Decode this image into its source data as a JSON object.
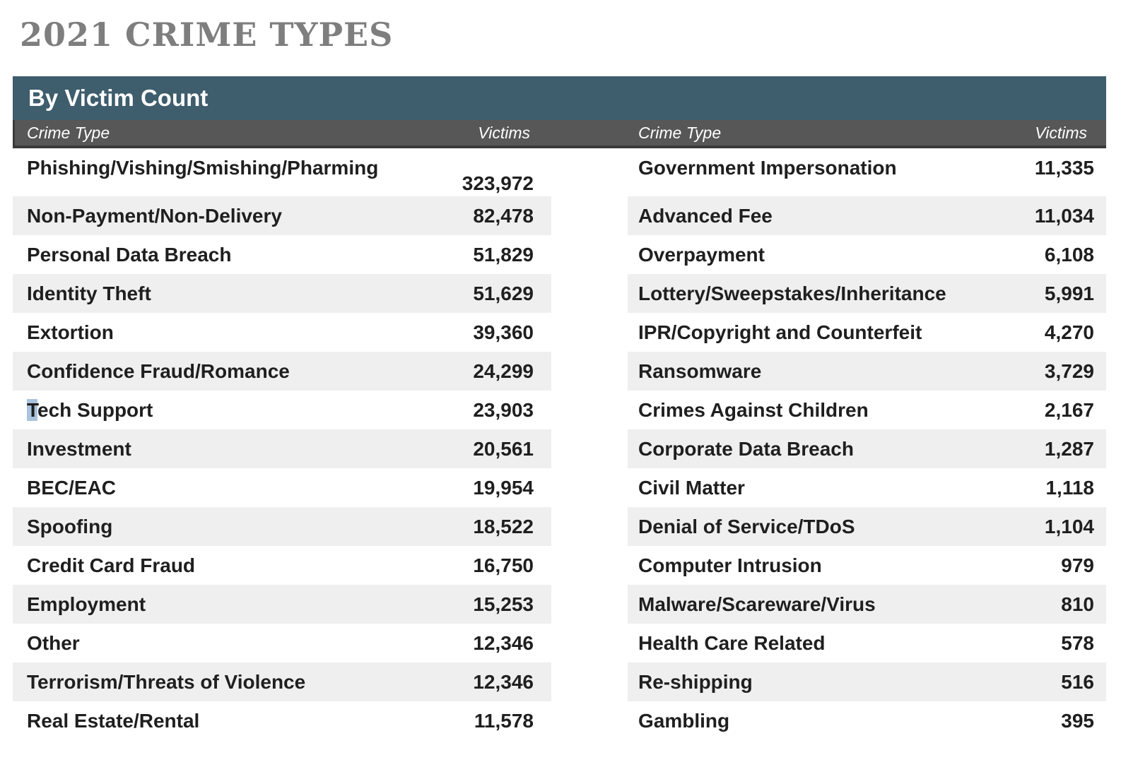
{
  "title": "2021 CRIME TYPES",
  "table": {
    "header": "By Victim Count",
    "column_headers": {
      "crime_type": "Crime Type",
      "victims": "Victims"
    },
    "left_rows": [
      {
        "label": "Phishing/Vishing/Smishing/Pharming",
        "value": "323,972"
      },
      {
        "label": "Non-Payment/Non-Delivery",
        "value": "82,478"
      },
      {
        "label": "Personal Data Breach",
        "value": "51,829"
      },
      {
        "label": "Identity Theft",
        "value": "51,629"
      },
      {
        "label": "Extortion",
        "value": "39,360"
      },
      {
        "label": "Confidence Fraud/Romance",
        "value": "24,299"
      },
      {
        "label_highlight": "T",
        "label_rest": "ech Support",
        "value": "23,903"
      },
      {
        "label": "Investment",
        "value": "20,561"
      },
      {
        "label": "BEC/EAC",
        "value": "19,954"
      },
      {
        "label": "Spoofing",
        "value": "18,522"
      },
      {
        "label": "Credit Card Fraud",
        "value": "16,750"
      },
      {
        "label": "Employment",
        "value": "15,253"
      },
      {
        "label": "Other",
        "value": "12,346"
      },
      {
        "label": "Terrorism/Threats of Violence",
        "value": "12,346"
      },
      {
        "label": "Real Estate/Rental",
        "value": "11,578"
      }
    ],
    "right_rows": [
      {
        "label": "Government Impersonation",
        "value": "11,335"
      },
      {
        "label": "Advanced Fee",
        "value": "11,034"
      },
      {
        "label": "Overpayment",
        "value": "6,108"
      },
      {
        "label": "Lottery/Sweepstakes/Inheritance",
        "value": "5,991"
      },
      {
        "label": "IPR/Copyright and Counterfeit",
        "value": "4,270"
      },
      {
        "label": "Ransomware",
        "value": "3,729"
      },
      {
        "label": "Crimes Against Children",
        "value": "2,167"
      },
      {
        "label": "Corporate Data Breach",
        "value": "1,287"
      },
      {
        "label": "Civil Matter",
        "value": "1,118"
      },
      {
        "label": "Denial of Service/TDoS",
        "value": "1,104"
      },
      {
        "label": "Computer Intrusion",
        "value": "979"
      },
      {
        "label": "Malware/Scareware/Virus",
        "value": "810"
      },
      {
        "label": "Health Care Related",
        "value": "578"
      },
      {
        "label": "Re-shipping",
        "value": "516"
      },
      {
        "label": "Gambling",
        "value": "395"
      }
    ],
    "colors": {
      "banner_background": "#3e5d6d",
      "subheader_background": "#575757",
      "subheader_border": "#3a3a3a",
      "row_shade": "#efefef",
      "text": "#1f1f1f",
      "title_text": "#7e7e7e",
      "selection_highlight": "#aac4de"
    }
  }
}
